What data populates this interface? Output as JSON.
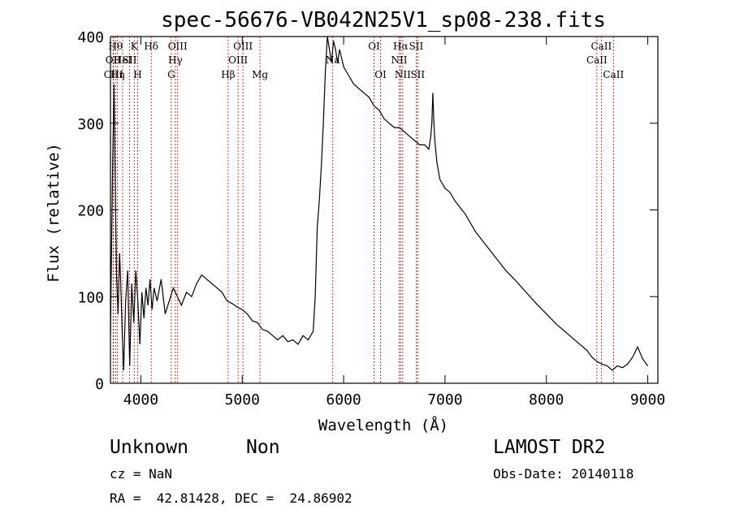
{
  "chart_data": {
    "type": "line",
    "title": "spec-56676-VB042N25V1_sp08-238.fits",
    "xlabel": "Wavelength (Å)",
    "ylabel": "Flux (relative)",
    "xlim": [
      3700,
      9100
    ],
    "ylim": [
      0,
      400
    ],
    "x_ticks": [
      4000,
      5000,
      6000,
      7000,
      8000,
      9000
    ],
    "y_ticks": [
      0,
      100,
      200,
      300,
      400
    ],
    "grid": false,
    "line_color": "#000000",
    "marker_color": "#cc0000",
    "series": [
      {
        "x": [
          3700,
          3720,
          3735,
          3750,
          3760,
          3775,
          3790,
          3800,
          3815,
          3830,
          3850,
          3870,
          3890,
          3910,
          3930,
          3950,
          3970,
          3990,
          4010,
          4030,
          4050,
          4070,
          4090,
          4110,
          4130,
          4160,
          4200,
          4240,
          4280,
          4320,
          4360,
          4400,
          4450,
          4500,
          4550,
          4600,
          4650,
          4700,
          4750,
          4800,
          4850,
          4900,
          4950,
          5000,
          5050,
          5100,
          5150,
          5200,
          5250,
          5300,
          5350,
          5400,
          5450,
          5500,
          5550,
          5600,
          5650,
          5700,
          5720,
          5740,
          5760,
          5780,
          5800,
          5820,
          5840,
          5860,
          5880,
          5900,
          5920,
          5940,
          5960,
          5980,
          6000,
          6050,
          6100,
          6150,
          6200,
          6250,
          6300,
          6350,
          6400,
          6450,
          6500,
          6550,
          6600,
          6650,
          6700,
          6750,
          6800,
          6840,
          6860,
          6870,
          6880,
          6890,
          6900,
          6920,
          6950,
          7000,
          7050,
          7100,
          7200,
          7300,
          7400,
          7500,
          7600,
          7700,
          7800,
          7900,
          8000,
          8100,
          8200,
          8300,
          8400,
          8450,
          8500,
          8550,
          8600,
          8650,
          8700,
          8750,
          8800,
          8850,
          8900,
          8950,
          9000
        ],
        "y": [
          55,
          240,
          345,
          210,
          125,
          80,
          150,
          120,
          60,
          15,
          95,
          130,
          20,
          115,
          70,
          130,
          95,
          45,
          105,
          75,
          110,
          90,
          120,
          85,
          110,
          95,
          120,
          80,
          95,
          110,
          100,
          90,
          105,
          100,
          115,
          125,
          120,
          115,
          110,
          105,
          95,
          92,
          88,
          85,
          80,
          72,
          70,
          62,
          60,
          55,
          50,
          55,
          48,
          50,
          45,
          55,
          50,
          60,
          100,
          180,
          210,
          250,
          300,
          360,
          400,
          385,
          370,
          395,
          385,
          370,
          385,
          375,
          365,
          355,
          345,
          340,
          335,
          330,
          320,
          315,
          305,
          300,
          295,
          295,
          290,
          285,
          280,
          275,
          275,
          270,
          285,
          300,
          335,
          300,
          280,
          255,
          235,
          225,
          220,
          210,
          195,
          175,
          160,
          145,
          130,
          118,
          105,
          92,
          80,
          68,
          58,
          48,
          38,
          30,
          25,
          22,
          20,
          15,
          20,
          18,
          22,
          30,
          42,
          28,
          20
        ]
      }
    ],
    "line_markers": [
      {
        "wl": 3750,
        "label": "Hθ",
        "row": 0
      },
      {
        "wl": 3727,
        "label": "OII",
        "row": 1
      },
      {
        "wl": 3730,
        "label": "OIII",
        "row": 2
      },
      {
        "wl": 3770,
        "label": "Hη",
        "row": 2
      },
      {
        "wl": 3820,
        "label": "HeI",
        "row": 1
      },
      {
        "wl": 3889,
        "label": "SII",
        "row": 1
      },
      {
        "wl": 3934,
        "label": "K",
        "row": 0
      },
      {
        "wl": 3968,
        "label": "H",
        "row": 2
      },
      {
        "wl": 4102,
        "label": "Hδ",
        "row": 0
      },
      {
        "wl": 4300,
        "label": "G",
        "row": 2
      },
      {
        "wl": 4340,
        "label": "Hγ",
        "row": 1
      },
      {
        "wl": 4363,
        "label": "OIII",
        "row": 0
      },
      {
        "wl": 4861,
        "label": "Hβ",
        "row": 2
      },
      {
        "wl": 4959,
        "label": "OIII",
        "row": 1
      },
      {
        "wl": 5007,
        "label": "OIII",
        "row": 0
      },
      {
        "wl": 5175,
        "label": "Mg",
        "row": 2
      },
      {
        "wl": 5893,
        "label": "Na",
        "row": 1
      },
      {
        "wl": 6300,
        "label": "OI",
        "row": 0
      },
      {
        "wl": 6364,
        "label": "OI",
        "row": 2
      },
      {
        "wl": 6548,
        "label": "NII",
        "row": 1
      },
      {
        "wl": 6563,
        "label": "Hα",
        "row": 0
      },
      {
        "wl": 6583,
        "label": "NII",
        "row": 2
      },
      {
        "wl": 6716,
        "label": "SII",
        "row": 0
      },
      {
        "wl": 6731,
        "label": "SII",
        "row": 2
      },
      {
        "wl": 8498,
        "label": "CaII",
        "row": 1
      },
      {
        "wl": 8542,
        "label": "CaII",
        "row": 0
      },
      {
        "wl": 8662,
        "label": "CaII",
        "row": 2
      }
    ]
  },
  "info": {
    "class": "Unknown",
    "subclass": "Non",
    "survey": "LAMOST DR2",
    "redshift": "cz = NaN",
    "obs_date": "Obs-Date: 20140118",
    "coords": "RA =  42.81428, DEC =  24.86902"
  }
}
